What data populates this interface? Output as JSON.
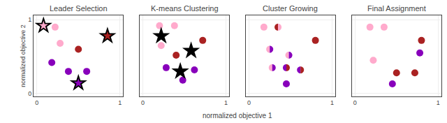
{
  "xlabel": "normalized objective 1",
  "chart_data": [
    {
      "type": "scatter",
      "title": "Leader Selection",
      "ylabel": "normalized objective 2",
      "xlim": [
        -0.04,
        1.04
      ],
      "ylim": [
        -0.04,
        1.06
      ],
      "xticks": [
        0,
        1
      ],
      "yticks": [
        0,
        1
      ],
      "series": [
        {
          "marker": "circle",
          "x": [
            0.22,
            0.28,
            0.5,
            0.18,
            0.38,
            0.6,
            0.85
          ],
          "values": [
            0.9,
            0.68,
            0.6,
            0.42,
            0.3,
            0.3,
            0.78
          ],
          "colors": [
            "#ffaacc",
            "#ffaacc",
            "#aa2222",
            "#8800bb",
            "#8800bb",
            "#8800bb",
            "#aa2222"
          ]
        },
        {
          "marker": "star",
          "color": "#000000",
          "x": [
            0.08,
            0.85,
            0.5
          ],
          "values": [
            0.92,
            0.78,
            0.14
          ],
          "colors": [
            "#ffaacc",
            "#aa2222",
            "#8800bb"
          ]
        }
      ]
    },
    {
      "type": "scatter",
      "title": "K-means Clustering",
      "xlim": [
        -0.04,
        1.04
      ],
      "ylim": [
        -0.04,
        1.06
      ],
      "xticks": [
        0,
        1
      ],
      "yticks": [
        0,
        1
      ],
      "tick_labels": "x",
      "series": [
        {
          "marker": "circle",
          "x": [
            0.2,
            0.38,
            0.22,
            0.4,
            0.72,
            0.28,
            0.62,
            0.48
          ],
          "values": [
            0.92,
            0.92,
            0.65,
            0.52,
            0.72,
            0.35,
            0.32,
            0.18
          ],
          "colors": [
            "#ffaacc",
            "#ffaacc",
            "#ffaacc",
            "#aa2222",
            "#aa2222",
            "#8800bb",
            "#8800bb",
            "#8800bb"
          ]
        },
        {
          "marker": "star",
          "color": "#000000",
          "x": [
            0.22,
            0.58,
            0.45
          ],
          "values": [
            0.78,
            0.58,
            0.3
          ]
        }
      ]
    },
    {
      "type": "scatter",
      "title": "Cluster Growing",
      "xlim": [
        -0.04,
        1.04
      ],
      "ylim": [
        -0.04,
        1.06
      ],
      "xticks": [
        0,
        1
      ],
      "yticks": [
        0,
        1
      ],
      "tick_labels": "x",
      "series": [
        {
          "marker": "circle",
          "x": [
            0.18,
            0.8,
            0.45
          ],
          "values": [
            0.9,
            0.72,
            0.13
          ],
          "colors": [
            "#ffaacc",
            "#aa2222",
            "#8800bb"
          ]
        },
        {
          "marker": "split",
          "x": [
            0.35,
            0.25,
            0.48,
            0.28,
            0.45,
            0.62
          ],
          "values": [
            0.9,
            0.6,
            0.52,
            0.35,
            0.35,
            0.32
          ],
          "colors": [
            [
              "#aa2222",
              "#ffaacc"
            ],
            [
              "#ffaacc",
              "#8800bb"
            ],
            [
              "#ffaacc",
              "#8800bb"
            ],
            [
              "#ffaacc",
              "#8800bb"
            ],
            [
              "#8800bb",
              "#aa2222"
            ],
            [
              "#8800bb",
              "#aa2222"
            ]
          ]
        }
      ]
    },
    {
      "type": "scatter",
      "title": "Final Assignment",
      "xlim": [
        -0.04,
        1.04
      ],
      "ylim": [
        -0.04,
        1.06
      ],
      "xticks": [
        0,
        1
      ],
      "yticks": [
        0,
        1
      ],
      "tick_labels": "x",
      "series": [
        {
          "marker": "circle",
          "x": [
            0.18,
            0.35,
            0.8,
            0.78,
            0.22,
            0.5,
            0.72,
            0.45
          ],
          "values": [
            0.9,
            0.9,
            0.72,
            0.55,
            0.45,
            0.28,
            0.28,
            0.13
          ],
          "colors": [
            "#ffaacc",
            "#ffaacc",
            "#aa2222",
            "#8800bb",
            "#ffaacc",
            "#aa2222",
            "#aa2222",
            "#8800bb"
          ]
        }
      ]
    }
  ]
}
